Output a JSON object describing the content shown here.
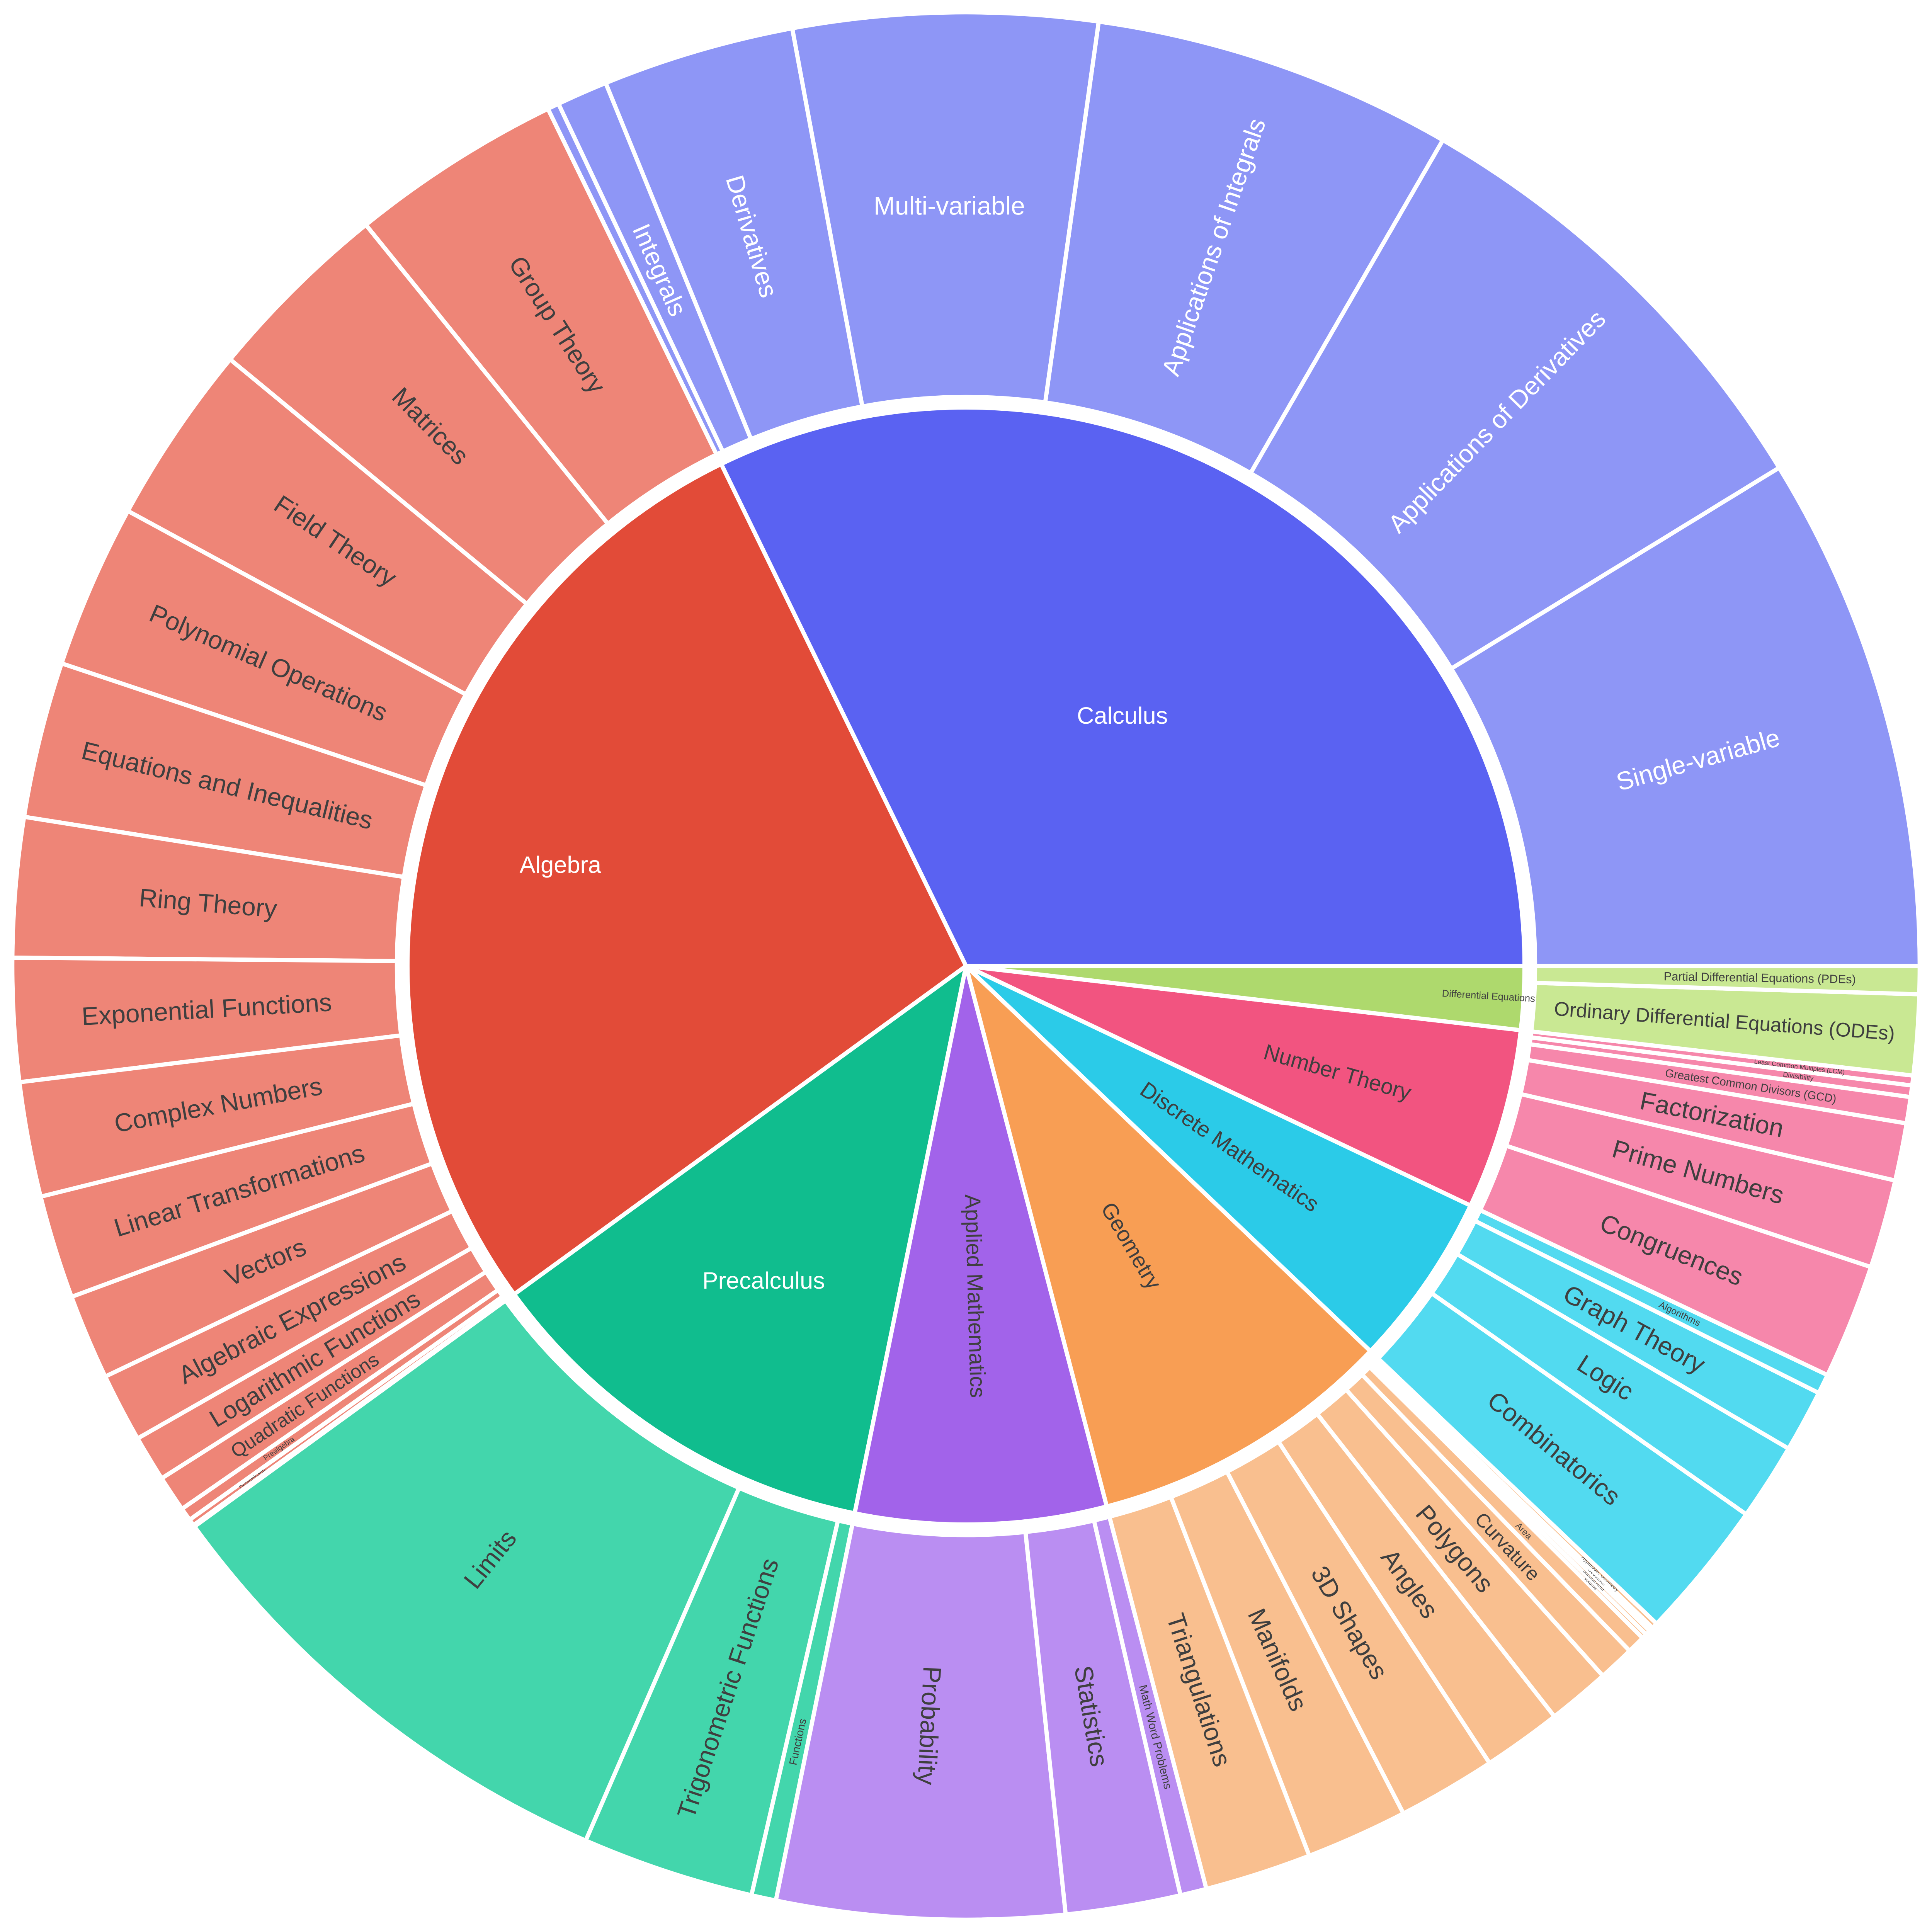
{
  "chart_data": {
    "type": "sunburst",
    "title": "",
    "layout": {
      "background": "#ffffff",
      "start_angle_deg": 0,
      "direction": "counterclockwise",
      "outer_radius": 543,
      "inner_ring_radius": 318,
      "child_ring_inner_radius": 324,
      "separator_color": "#ffffff",
      "label_dark_color": "#3f3f3f",
      "label_light_color": "#ffffff"
    },
    "categories": [
      {
        "label": "Calculus",
        "color": "#5a62f2",
        "child_color": "#8e96f6",
        "text_color": "#ffffff",
        "child_text_color": "#ffffff",
        "label_r": 168,
        "children": [
          {
            "label": "Single-variable",
            "value": 31.5
          },
          {
            "label": "Applications of Derivatives",
            "value": 28.5
          },
          {
            "label": "Applications of Integrals",
            "value": 22.0
          },
          {
            "label": "Multi-variable",
            "value": 18.5,
            "horiz": true
          },
          {
            "label": "Derivatives",
            "value": 11.7
          },
          {
            "label": "Integrals",
            "value": 3.1
          },
          {
            "label": "",
            "value": 0.7
          }
        ]
      },
      {
        "label": "Algebra",
        "color": "#e24b38",
        "child_color": "#ee8577",
        "text_color": "#ffffff",
        "child_text_color": "#3f3f3f",
        "label_r": 238,
        "children": [
          {
            "label": "Group Theory",
            "value": 13.0
          },
          {
            "label": "Matrices",
            "value": 11.5
          },
          {
            "label": "Field Theory",
            "value": 11.0
          },
          {
            "label": "Polynomial Operations",
            "value": 10.0
          },
          {
            "label": "Equations and Inequalities",
            "value": 9.5
          },
          {
            "label": "Ring Theory",
            "value": 8.5
          },
          {
            "label": "Exponential Functions",
            "value": 7.5
          },
          {
            "label": "Complex Numbers",
            "value": 7.0
          },
          {
            "label": "Linear Transformations",
            "value": 6.3
          },
          {
            "label": "Vectors",
            "value": 5.2
          },
          {
            "label": "Algebraic Expressions",
            "value": 4.2
          },
          {
            "label": "Logarithmic Functions",
            "value": 2.8
          },
          {
            "label": "Quadratic Functions",
            "value": 2.2
          },
          {
            "label": "Prealgebra",
            "value": 0.8
          },
          {
            "label": "Determinants",
            "value": 0.4
          },
          {
            "label": "",
            "value": 0.1
          }
        ]
      },
      {
        "label": "Precalculus",
        "color": "#10bd8e",
        "child_color": "#43d6ac",
        "text_color": "#ffffff",
        "child_text_color": "#3f3f3f",
        "label_r": 213,
        "children": [
          {
            "label": "Limits",
            "value": 30.5
          },
          {
            "label": "Trigonometric Functions",
            "value": 10.5
          },
          {
            "label": "Functions",
            "value": 1.5
          }
        ]
      },
      {
        "label": "Applied Mathematics",
        "color": "#a263ea",
        "child_color": "#ba8ef2",
        "text_color": "#3f3f3f",
        "child_text_color": "#3f3f3f",
        "label_r": 188,
        "children": [
          {
            "label": "Probability",
            "value": 17.5
          },
          {
            "label": "Statistics",
            "value": 7.0
          },
          {
            "label": "Math Word Problems",
            "value": 1.6
          }
        ]
      },
      {
        "label": "Geometry",
        "color": "#f89e54",
        "child_color": "#f9bf8f",
        "text_color": "#3f3f3f",
        "child_text_color": "#3f3f3f",
        "label_r": 185,
        "children": [
          {
            "label": "Triangulations",
            "value": 6.5
          },
          {
            "label": "Manifolds",
            "value": 6.2
          },
          {
            "label": "3D Shapes",
            "value": 6.0
          },
          {
            "label": "Angles",
            "value": 4.8
          },
          {
            "label": "Polygons",
            "value": 3.8
          },
          {
            "label": "Curvature",
            "value": 2.2
          },
          {
            "label": "Area",
            "value": 1.1
          },
          {
            "label": "Volume",
            "value": 0.3
          },
          {
            "label": "Surface Area",
            "value": 0.3
          },
          {
            "label": "Geodesics",
            "value": 0.25
          },
          {
            "label": "Hyperbolic Geometry",
            "value": 0.35
          }
        ]
      },
      {
        "label": "Discrete Mathematics",
        "color": "#2bcbe8",
        "child_color": "#52daf0",
        "text_color": "#3f3f3f",
        "child_text_color": "#3f3f3f",
        "label_r": 182,
        "children": [
          {
            "label": "Combinatorics",
            "value": 8.5
          },
          {
            "label": "Logic",
            "value": 4.7
          },
          {
            "label": "Graph Theory",
            "value": 3.8
          },
          {
            "label": "Algorithms",
            "value": 1.2
          }
        ]
      },
      {
        "label": "Number Theory",
        "color": "#f25480",
        "child_color": "#f687ab",
        "text_color": "#3f3f3f",
        "child_text_color": "#3f3f3f",
        "label_r": 220,
        "children": [
          {
            "label": "Congruences",
            "value": 7.0
          },
          {
            "label": "Prime Numbers",
            "value": 5.4
          },
          {
            "label": "Factorization",
            "value": 3.5
          },
          {
            "label": "Greatest Common Divisors (GCD)",
            "value": 1.6
          },
          {
            "label": "Divisibility",
            "value": 0.7
          },
          {
            "label": "Least Common Multiples (LCM)",
            "value": 0.6
          }
        ]
      },
      {
        "label": "Differential Equations",
        "color": "#aed96d",
        "child_color": "#c9e893",
        "text_color": "#3f3f3f",
        "child_text_color": "#3f3f3f",
        "label_r": 298,
        "children": [
          {
            "label": "Ordinary Differential Equations (ODEs)",
            "value": 4.9
          },
          {
            "label": "Partial Differential Equations (PDEs)",
            "value": 1.7
          }
        ]
      }
    ]
  }
}
